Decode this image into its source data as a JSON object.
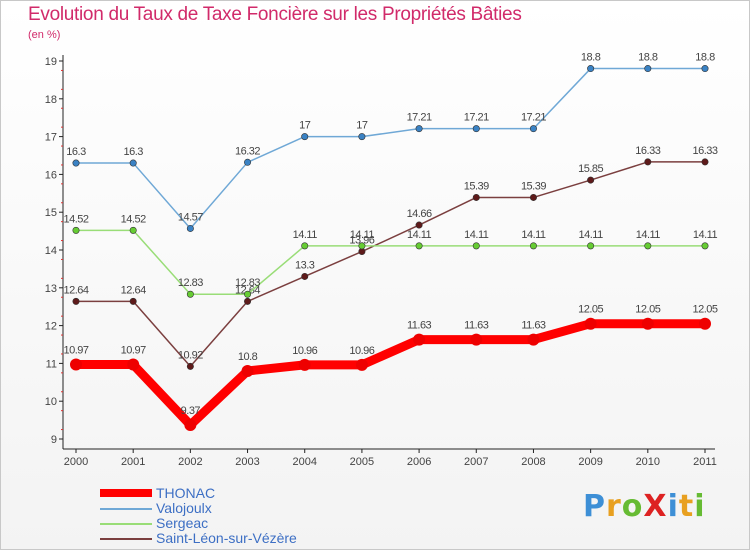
{
  "title": "Evolution du Taux de Taxe Foncière sur les Propriétés Bâties",
  "subtitle": "(en %)",
  "logo": "ProXiti",
  "chart_data": {
    "type": "line",
    "title": "Evolution du Taux de Taxe Foncière sur les Propriétés Bâties",
    "ylabel": "(en %)",
    "xlabel": "",
    "x": [
      "2000",
      "2001",
      "2002",
      "2003",
      "2004",
      "2005",
      "2006",
      "2007",
      "2008",
      "2009",
      "2010",
      "2011"
    ],
    "ylim": [
      9,
      19
    ],
    "yticks": [
      9,
      10,
      11,
      12,
      13,
      14,
      15,
      16,
      17,
      18,
      19
    ],
    "legend_position": "bottom-left",
    "series": [
      {
        "name": "Valojoulx",
        "color": "#6fa8d6",
        "marker": "#3a82c4",
        "values": [
          16.3,
          16.3,
          14.57,
          16.32,
          17,
          17,
          17.21,
          17.21,
          17.21,
          18.8,
          18.8,
          18.8
        ],
        "labels": [
          "16.3",
          "16.3",
          "14.57",
          "16.32",
          "17",
          "17",
          "17.21",
          "17.21",
          "17.21",
          "18.8",
          "18.8",
          "18.8"
        ]
      },
      {
        "name": "Saint-Léon-sur-Vézère",
        "color": "#7b3f3f",
        "marker": "#5e1a1a",
        "values": [
          12.64,
          12.64,
          10.92,
          12.64,
          13.3,
          13.96,
          14.66,
          15.39,
          15.39,
          15.85,
          16.33,
          16.33
        ],
        "labels": [
          "12.64",
          "12.64",
          "10.92",
          "12.64",
          "13.3",
          "13.96",
          "14.66",
          "15.39",
          "15.39",
          "15.85",
          "16.33",
          "16.33"
        ]
      },
      {
        "name": "Sergeac",
        "color": "#99dd77",
        "marker": "#66cc33",
        "values": [
          14.52,
          14.52,
          12.83,
          12.83,
          14.11,
          14.11,
          14.11,
          14.11,
          14.11,
          14.11,
          14.11,
          14.11
        ],
        "labels": [
          "14.52",
          "14.52",
          "12.83",
          "12.83",
          "14.11",
          "14.11",
          "14.11",
          "14.11",
          "14.11",
          "14.11",
          "14.11",
          "14.11"
        ]
      },
      {
        "name": "THONAC",
        "color": "#ff0000",
        "marker": "#ee0000",
        "values": [
          10.97,
          10.97,
          9.37,
          10.8,
          10.96,
          10.96,
          11.63,
          11.63,
          11.63,
          12.05,
          12.05,
          12.05
        ],
        "labels": [
          "10.97",
          "10.97",
          "9.37",
          "10.8",
          "10.96",
          "10.96",
          "11.63",
          "11.63",
          "11.63",
          "12.05",
          "12.05",
          "12.05"
        ]
      }
    ]
  },
  "legend": [
    {
      "name": "THONAC",
      "color": "#ff0000"
    },
    {
      "name": "Valojoulx",
      "color": "#6fa8d6"
    },
    {
      "name": "Sergeac",
      "color": "#99dd77"
    },
    {
      "name": "Saint-Léon-sur-Vézère",
      "color": "#7b3f3f"
    }
  ]
}
